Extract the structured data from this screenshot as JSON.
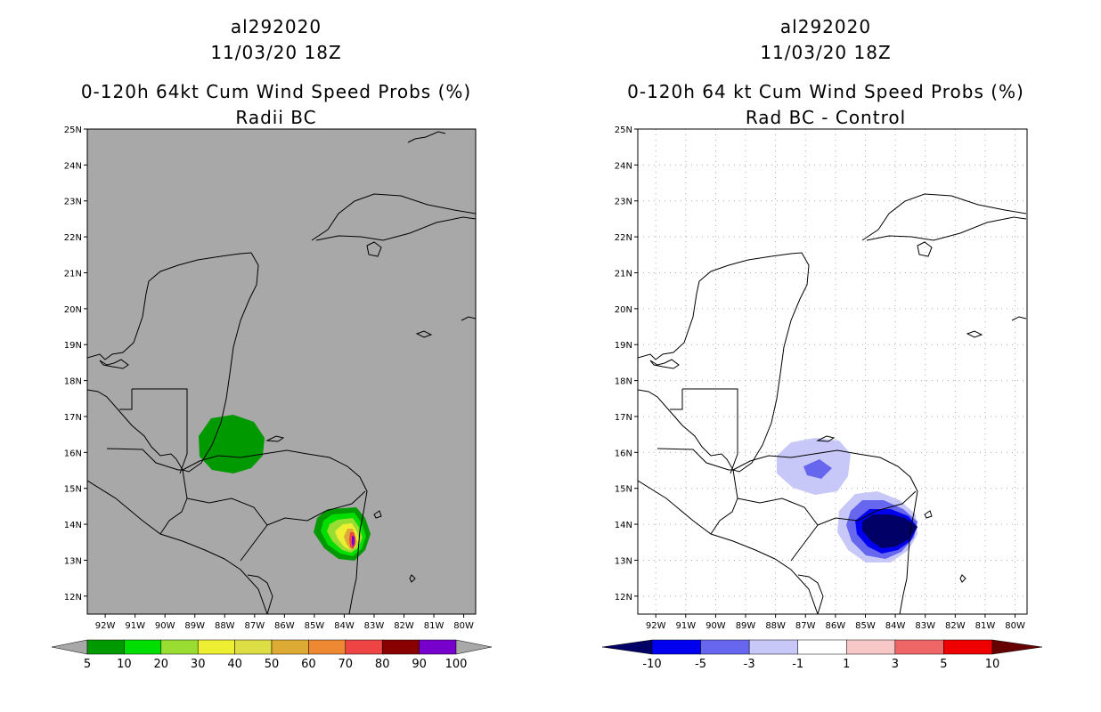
{
  "left_panel": {
    "title_line1": "al292020",
    "title_line2": "11/03/20 18Z",
    "title_line3": "0-120h 64kt Cum Wind Speed Probs (%)",
    "title_line4": "Radii BC",
    "background_color": "#a8a8a8",
    "colorbar": {
      "labels": [
        "5",
        "10",
        "20",
        "30",
        "40",
        "50",
        "60",
        "70",
        "80",
        "90",
        "100"
      ],
      "colors": [
        "#009900",
        "#00dd00",
        "#99dd33",
        "#eeee33",
        "#dddd44",
        "#ddaa33",
        "#ee8833",
        "#ee4444",
        "#880000",
        "#7700cc"
      ],
      "under_color": "#a8a8a8",
      "over_color": "#a8a8a8"
    }
  },
  "right_panel": {
    "title_line1": "al292020",
    "title_line2": "11/03/20 18Z",
    "title_line3": "0-120h 64 kt Cum Wind Speed Probs (%)",
    "title_line4": "Rad BC - Control",
    "background_color": "#ffffff",
    "colorbar": {
      "labels": [
        "-10",
        "-5",
        "-3",
        "-1",
        "1",
        "3",
        "5",
        "10"
      ],
      "colors": [
        "#0000ee",
        "#6666ee",
        "#c8c8f8",
        "#ffffff",
        "#f8c8c8",
        "#ee6666",
        "#ee0000"
      ],
      "under_color": "#000066",
      "over_color": "#660000"
    }
  },
  "axes": {
    "lat_labels": [
      "25N",
      "24N",
      "23N",
      "22N",
      "21N",
      "20N",
      "19N",
      "18N",
      "17N",
      "16N",
      "15N",
      "14N",
      "13N",
      "12N"
    ],
    "lon_labels": [
      "92W",
      "91W",
      "90W",
      "89W",
      "88W",
      "87W",
      "86W",
      "85W",
      "84W",
      "83W",
      "82W",
      "81W",
      "80W"
    ],
    "lat_values": [
      25,
      24,
      23,
      22,
      21,
      20,
      19,
      18,
      17,
      16,
      15,
      14,
      13,
      12
    ],
    "lon_values": [
      -92,
      -91,
      -90,
      -89,
      -88,
      -87,
      -86,
      -85,
      -84,
      -83,
      -82,
      -81,
      -80
    ],
    "lat_range": [
      11.5,
      25
    ],
    "lon_range": [
      -92.6,
      -79.6
    ]
  },
  "colors": {
    "coastline": "#000000",
    "grid": "#aaaaaa",
    "text": "#000000"
  }
}
